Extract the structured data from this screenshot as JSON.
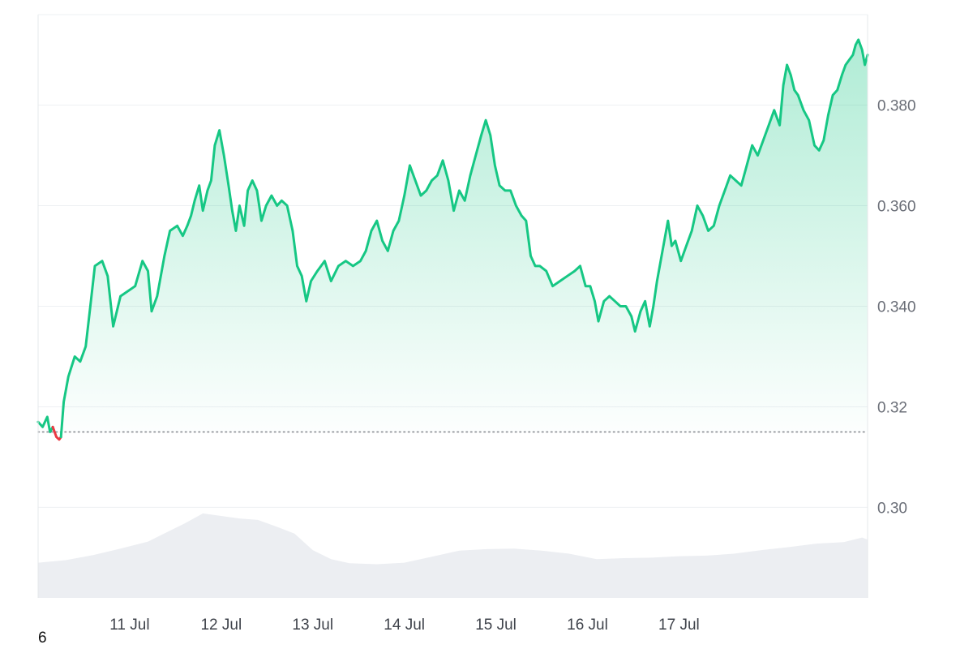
{
  "chart_data": {
    "type": "area",
    "title": "",
    "xlabel": "",
    "ylabel": "",
    "x_start": "10 Jul",
    "x_end": "17 Jul",
    "x_tick_labels": [
      "11 Jul",
      "12 Jul",
      "13 Jul",
      "14 Jul",
      "15 Jul",
      "16 Jul",
      "17 Jul"
    ],
    "y_tick_labels": [
      "0.30",
      "0.32",
      "0.340",
      "0.360",
      "0.380"
    ],
    "ylim": [
      0.282,
      0.398
    ],
    "y_axis_side": "right",
    "grid": true,
    "legend": "none",
    "baseline_value": 0.315,
    "colors": {
      "up": "#16c784",
      "down": "#ea3943",
      "volume": "#eceef2",
      "grid": "#eef0f3",
      "baseline": "#888b92"
    },
    "series": [
      {
        "values": [
          [
            0.0,
            0.317
          ],
          [
            0.05,
            0.316
          ],
          [
            0.1,
            0.318
          ],
          [
            0.13,
            0.315
          ],
          [
            0.16,
            0.316
          ],
          [
            0.2,
            0.314
          ],
          [
            0.23,
            0.3135
          ],
          [
            0.25,
            0.314
          ],
          [
            0.28,
            0.321
          ],
          [
            0.33,
            0.326
          ],
          [
            0.4,
            0.33
          ],
          [
            0.46,
            0.329
          ],
          [
            0.52,
            0.332
          ],
          [
            0.57,
            0.34
          ],
          [
            0.62,
            0.348
          ],
          [
            0.7,
            0.349
          ],
          [
            0.76,
            0.346
          ],
          [
            0.82,
            0.336
          ],
          [
            0.9,
            0.342
          ],
          [
            0.98,
            0.343
          ],
          [
            1.06,
            0.344
          ],
          [
            1.14,
            0.349
          ],
          [
            1.2,
            0.347
          ],
          [
            1.24,
            0.339
          ],
          [
            1.3,
            0.342
          ],
          [
            1.38,
            0.35
          ],
          [
            1.44,
            0.355
          ],
          [
            1.52,
            0.356
          ],
          [
            1.58,
            0.354
          ],
          [
            1.63,
            0.356
          ],
          [
            1.67,
            0.358
          ],
          [
            1.71,
            0.361
          ],
          [
            1.76,
            0.364
          ],
          [
            1.8,
            0.359
          ],
          [
            1.85,
            0.363
          ],
          [
            1.89,
            0.365
          ],
          [
            1.93,
            0.372
          ],
          [
            1.98,
            0.375
          ],
          [
            2.03,
            0.37
          ],
          [
            2.08,
            0.364
          ],
          [
            2.12,
            0.359
          ],
          [
            2.16,
            0.355
          ],
          [
            2.2,
            0.36
          ],
          [
            2.25,
            0.356
          ],
          [
            2.29,
            0.363
          ],
          [
            2.34,
            0.365
          ],
          [
            2.39,
            0.363
          ],
          [
            2.44,
            0.357
          ],
          [
            2.49,
            0.36
          ],
          [
            2.55,
            0.362
          ],
          [
            2.61,
            0.36
          ],
          [
            2.66,
            0.361
          ],
          [
            2.72,
            0.36
          ],
          [
            2.78,
            0.355
          ],
          [
            2.83,
            0.348
          ],
          [
            2.88,
            0.346
          ],
          [
            2.93,
            0.341
          ],
          [
            2.98,
            0.345
          ],
          [
            3.05,
            0.347
          ],
          [
            3.13,
            0.349
          ],
          [
            3.2,
            0.345
          ],
          [
            3.28,
            0.348
          ],
          [
            3.36,
            0.349
          ],
          [
            3.44,
            0.348
          ],
          [
            3.52,
            0.349
          ],
          [
            3.58,
            0.351
          ],
          [
            3.64,
            0.355
          ],
          [
            3.7,
            0.357
          ],
          [
            3.76,
            0.353
          ],
          [
            3.82,
            0.351
          ],
          [
            3.88,
            0.355
          ],
          [
            3.94,
            0.357
          ],
          [
            4.0,
            0.362
          ],
          [
            4.06,
            0.368
          ],
          [
            4.12,
            0.365
          ],
          [
            4.18,
            0.362
          ],
          [
            4.24,
            0.363
          ],
          [
            4.3,
            0.365
          ],
          [
            4.36,
            0.366
          ],
          [
            4.42,
            0.369
          ],
          [
            4.48,
            0.365
          ],
          [
            4.54,
            0.359
          ],
          [
            4.6,
            0.363
          ],
          [
            4.66,
            0.361
          ],
          [
            4.72,
            0.366
          ],
          [
            4.78,
            0.37
          ],
          [
            4.84,
            0.374
          ],
          [
            4.89,
            0.377
          ],
          [
            4.94,
            0.374
          ],
          [
            4.99,
            0.368
          ],
          [
            5.04,
            0.364
          ],
          [
            5.1,
            0.363
          ],
          [
            5.16,
            0.363
          ],
          [
            5.22,
            0.36
          ],
          [
            5.28,
            0.358
          ],
          [
            5.33,
            0.357
          ],
          [
            5.38,
            0.35
          ],
          [
            5.43,
            0.348
          ],
          [
            5.48,
            0.348
          ],
          [
            5.55,
            0.347
          ],
          [
            5.62,
            0.344
          ],
          [
            5.7,
            0.345
          ],
          [
            5.78,
            0.346
          ],
          [
            5.86,
            0.347
          ],
          [
            5.92,
            0.348
          ],
          [
            5.98,
            0.344
          ],
          [
            6.03,
            0.344
          ],
          [
            6.08,
            0.341
          ],
          [
            6.12,
            0.337
          ],
          [
            6.18,
            0.341
          ],
          [
            6.24,
            0.342
          ],
          [
            6.3,
            0.341
          ],
          [
            6.36,
            0.34
          ],
          [
            6.42,
            0.34
          ],
          [
            6.48,
            0.338
          ],
          [
            6.52,
            0.335
          ],
          [
            6.58,
            0.339
          ],
          [
            6.63,
            0.341
          ],
          [
            6.68,
            0.336
          ],
          [
            6.72,
            0.34
          ],
          [
            6.76,
            0.345
          ],
          [
            6.8,
            0.349
          ],
          [
            6.84,
            0.353
          ],
          [
            6.88,
            0.357
          ],
          [
            6.92,
            0.352
          ],
          [
            6.96,
            0.353
          ],
          [
            7.02,
            0.349
          ],
          [
            7.08,
            0.352
          ],
          [
            7.14,
            0.355
          ],
          [
            7.2,
            0.36
          ],
          [
            7.26,
            0.358
          ],
          [
            7.32,
            0.355
          ],
          [
            7.38,
            0.356
          ],
          [
            7.44,
            0.36
          ],
          [
            7.5,
            0.363
          ],
          [
            7.56,
            0.366
          ],
          [
            7.62,
            0.365
          ],
          [
            7.68,
            0.364
          ],
          [
            7.74,
            0.368
          ],
          [
            7.8,
            0.372
          ],
          [
            7.86,
            0.37
          ],
          [
            7.92,
            0.373
          ],
          [
            7.98,
            0.376
          ],
          [
            8.04,
            0.379
          ],
          [
            8.1,
            0.376
          ],
          [
            8.14,
            0.384
          ],
          [
            8.18,
            0.388
          ],
          [
            8.22,
            0.386
          ],
          [
            8.26,
            0.383
          ],
          [
            8.3,
            0.382
          ],
          [
            8.36,
            0.379
          ],
          [
            8.42,
            0.377
          ],
          [
            8.48,
            0.372
          ],
          [
            8.53,
            0.371
          ],
          [
            8.58,
            0.373
          ],
          [
            8.63,
            0.378
          ],
          [
            8.68,
            0.382
          ],
          [
            8.73,
            0.383
          ],
          [
            8.78,
            0.386
          ],
          [
            8.82,
            0.388
          ],
          [
            8.86,
            0.389
          ],
          [
            8.9,
            0.39
          ],
          [
            8.93,
            0.392
          ],
          [
            8.96,
            0.393
          ],
          [
            9.0,
            0.391
          ],
          [
            9.03,
            0.388
          ],
          [
            9.06,
            0.39
          ]
        ]
      }
    ],
    "volume": [
      [
        0.0,
        0.289
      ],
      [
        0.3,
        0.2895
      ],
      [
        0.6,
        0.2905
      ],
      [
        0.9,
        0.2918
      ],
      [
        1.2,
        0.2932
      ],
      [
        1.4,
        0.295
      ],
      [
        1.6,
        0.2968
      ],
      [
        1.8,
        0.2988
      ],
      [
        2.0,
        0.2983
      ],
      [
        2.2,
        0.2978
      ],
      [
        2.4,
        0.2975
      ],
      [
        2.6,
        0.2962
      ],
      [
        2.8,
        0.2948
      ],
      [
        3.0,
        0.2915
      ],
      [
        3.2,
        0.2897
      ],
      [
        3.4,
        0.2889
      ],
      [
        3.7,
        0.2887
      ],
      [
        4.0,
        0.289
      ],
      [
        4.3,
        0.2902
      ],
      [
        4.6,
        0.2914
      ],
      [
        4.9,
        0.2917
      ],
      [
        5.2,
        0.2918
      ],
      [
        5.5,
        0.2914
      ],
      [
        5.8,
        0.2908
      ],
      [
        6.1,
        0.2897
      ],
      [
        6.4,
        0.2899
      ],
      [
        6.7,
        0.29
      ],
      [
        7.0,
        0.2903
      ],
      [
        7.3,
        0.2904
      ],
      [
        7.6,
        0.2908
      ],
      [
        7.9,
        0.2915
      ],
      [
        8.2,
        0.2921
      ],
      [
        8.5,
        0.2928
      ],
      [
        8.8,
        0.2931
      ],
      [
        9.0,
        0.294
      ],
      [
        9.06,
        0.2936
      ]
    ]
  },
  "corner_label": "6"
}
